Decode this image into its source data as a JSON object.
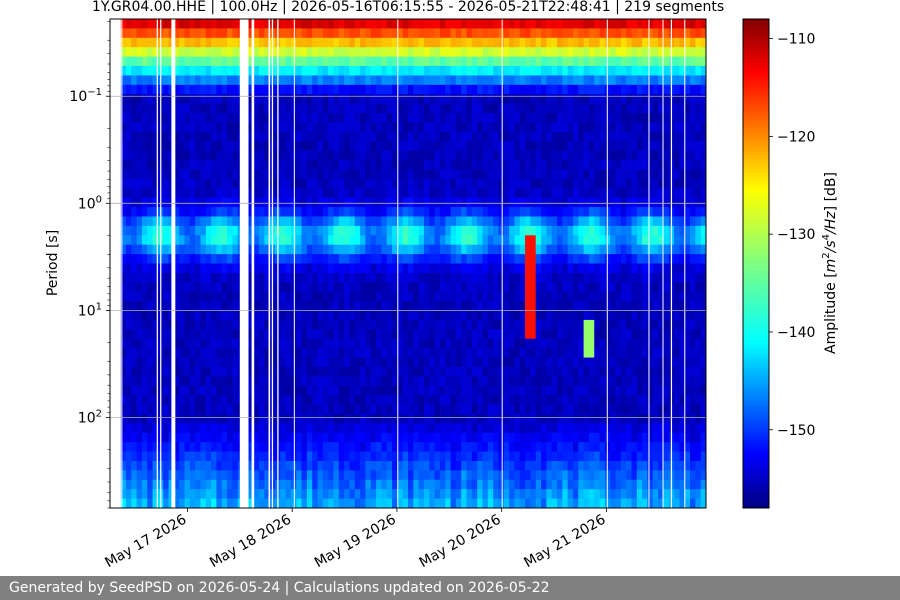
{
  "chart_data": {
    "type": "heatmap",
    "title": "1Y.GR04.00.HHE | 100.0Hz | 2026-05-16T06:15:55 - 2026-05-21T22:48:41 | 219 segments",
    "ylabel": "Period [s]",
    "colorbar_label": "Amplitude [m^2/s^4/Hz] [dB]",
    "colorbar_label_parts": [
      "Amplitude [",
      "m",
      "2",
      "/s",
      "4",
      "/Hz",
      "] [dB]"
    ],
    "colorbar_range": [
      -158,
      -108
    ],
    "colorbar_ticks": [
      -110,
      -120,
      -130,
      -140,
      -150
    ],
    "colorbar_tick_labels": [
      "−110",
      "−120",
      "−130",
      "−140",
      "−150"
    ],
    "y_scale": "log",
    "y_inverted": true,
    "ylim_seconds": [
      0.019,
      700
    ],
    "y_ticks": [
      {
        "value": 0.1,
        "base": "10",
        "exp": "−1"
      },
      {
        "value": 1,
        "base": "10",
        "exp": "0"
      },
      {
        "value": 10,
        "base": "10",
        "exp": "1"
      },
      {
        "value": 100,
        "base": "10",
        "exp": "2"
      }
    ],
    "x_range": [
      "2026-05-16T06:15:55",
      "2026-05-21T22:48:41"
    ],
    "x_ticks": [
      {
        "value": "2026-05-17T00:00:00",
        "label": "May 17 2026"
      },
      {
        "value": "2026-05-18T00:00:00",
        "label": "May 18 2026"
      },
      {
        "value": "2026-05-19T00:00:00",
        "label": "May 19 2026"
      },
      {
        "value": "2026-05-20T00:00:00",
        "label": "May 20 2026"
      },
      {
        "value": "2026-05-21T00:00:00",
        "label": "May 21 2026"
      }
    ],
    "grid": "horizontal",
    "colormap": "jet",
    "data_gaps": [
      [
        "2026-05-16T06:15:55",
        "2026-05-16T08:45:00"
      ],
      [
        "2026-05-16T08:52:00",
        "2026-05-16T09:02:00"
      ],
      [
        "2026-05-16T16:58:00",
        "2026-05-16T17:15:00"
      ],
      [
        "2026-05-16T17:45:00",
        "2026-05-16T18:02:00"
      ],
      [
        "2026-05-16T20:20:00",
        "2026-05-16T21:14:00"
      ],
      [
        "2026-05-17T12:00:00",
        "2026-05-17T14:00:00"
      ],
      [
        "2026-05-17T14:42:00",
        "2026-05-17T15:18:00"
      ],
      [
        "2026-05-17T18:35:00",
        "2026-05-17T18:57:00"
      ],
      [
        "2026-05-17T19:20:00",
        "2026-05-17T19:38:00"
      ],
      [
        "2026-05-17T20:35:00",
        "2026-05-17T20:53:00"
      ],
      [
        "2026-05-18T00:23:00",
        "2026-05-18T00:36:00"
      ],
      [
        "2026-05-19T00:05:00",
        "2026-05-19T00:15:00"
      ],
      [
        "2026-05-20T00:00:00",
        "2026-05-20T00:11:00"
      ],
      [
        "2026-05-21T00:05:00",
        "2026-05-21T00:13:00"
      ],
      [
        "2026-05-21T09:38:00",
        "2026-05-21T09:50:00"
      ],
      [
        "2026-05-21T12:51:00",
        "2026-05-21T13:04:00"
      ],
      [
        "2026-05-21T14:45:00",
        "2026-05-21T15:02:00"
      ],
      [
        "2026-05-21T17:50:00",
        "2026-05-21T18:04:00"
      ]
    ],
    "spectrogram_features": {
      "microseism_peak_period_s": 2,
      "microseism_peak_db": -136,
      "high_frequency_level_db": -110,
      "background_db": -155,
      "transient_events": [
        {
          "time": "2026-05-20T06:00:00",
          "period_range_s": [
            2,
            20
          ],
          "peak_db": -115
        },
        {
          "time": "2026-05-20T19:30:00",
          "period_range_s": [
            12,
            28
          ],
          "peak_db": -132
        }
      ]
    }
  },
  "footer": {
    "text": "Generated by SeedPSD on 2026-05-24 | Calculations updated on 2026-05-22"
  }
}
